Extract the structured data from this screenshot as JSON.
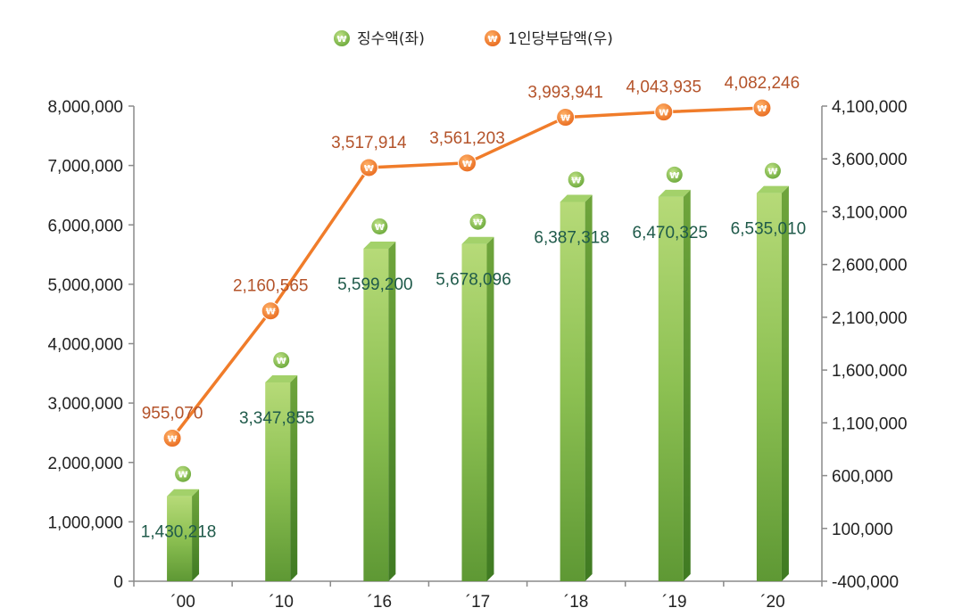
{
  "legend": {
    "bar_label": "징수액(좌)",
    "line_label": "1인당부담액(우)",
    "won_symbol": "₩"
  },
  "colors": {
    "bar_light": "#a8d06a",
    "bar_mid": "#7fb548",
    "bar_dark": "#5e9834",
    "bar_side": "#4f8a2c",
    "bar_top": "#9ccc5c",
    "line": "#f07c2a",
    "bar_label": "#1f5a4a",
    "line_label": "#b4532a",
    "axis": "#888888"
  },
  "chart_data": {
    "type": "bar",
    "categories": [
      "´00",
      "´10",
      "´16",
      "´17",
      "´18",
      "´19",
      "´20"
    ],
    "series": [
      {
        "name": "징수액(좌)",
        "type": "bar",
        "axis": "left",
        "values": [
          1430218,
          3347855,
          5599200,
          5678096,
          6387318,
          6470325,
          6535010
        ],
        "labels": [
          "1,430,218",
          "3,347,855",
          "5,599,200",
          "5,678,096",
          "6,387,318",
          "6,470,325",
          "6,535,010"
        ]
      },
      {
        "name": "1인당부담액(우)",
        "type": "line",
        "axis": "right",
        "values": [
          955070,
          2160565,
          3517914,
          3561203,
          3993941,
          4043935,
          4082246
        ],
        "labels": [
          "955,070",
          "2,160,565",
          "3,517,914",
          "3,561,203",
          "3,993,941",
          "4,043,935",
          "4,082,246"
        ]
      }
    ],
    "ylim_left": [
      0,
      8000000
    ],
    "ylim_right": [
      -400000,
      4100000
    ],
    "yticks_left": [
      "0",
      "1,000,000",
      "2,000,000",
      "3,000,000",
      "4,000,000",
      "5,000,000",
      "6,000,000",
      "7,000,000",
      "8,000,000"
    ],
    "yticks_right": [
      "-400,000",
      "100,000",
      "600,000",
      "1,100,000",
      "1,600,000",
      "2,100,000",
      "2,600,000",
      "3,100,000",
      "3,600,000",
      "4,100,000"
    ],
    "legend_position": "top-center",
    "grid": false
  }
}
